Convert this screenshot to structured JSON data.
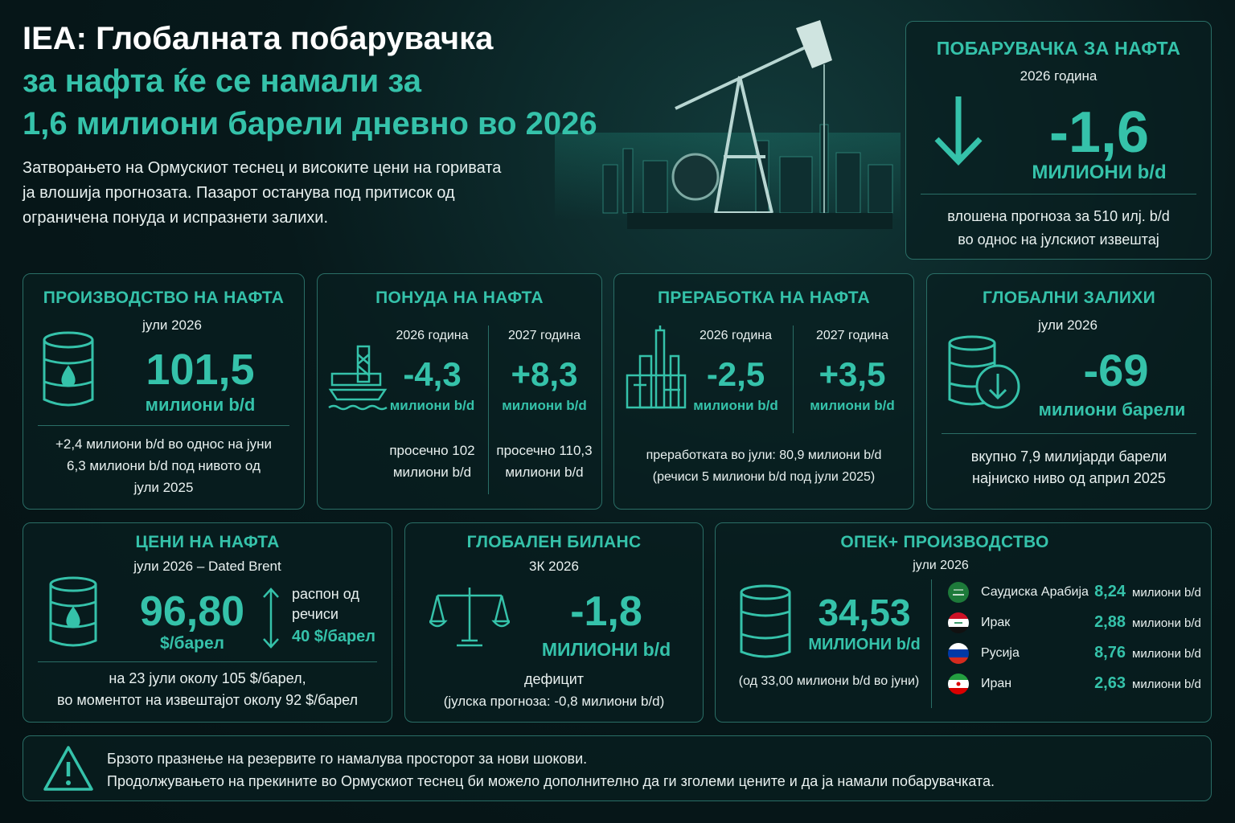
{
  "header": {
    "title": [
      "IEA: Глобалната побарувачка",
      "за нафта ќе се намали за",
      "1,6 милиони барели дневно во 2026"
    ],
    "description": [
      "Затворањето на Ормускиот теснец и високите цени на горивата",
      "ја влошија прогнозата. Пазарот останува под притисок од",
      "ограничена понуда и испразнети залихи."
    ]
  },
  "demand": {
    "title": "ПОБАРУВАЧКА ЗА НАФТА",
    "period": "2026 година",
    "value": "-1,6",
    "unit": "МИЛИОНИ b/d",
    "note": [
      "влошена прогноза за 510 илј. b/d",
      "во однос на јулскиот извештај"
    ]
  },
  "production": {
    "title": "ПРОИЗВОДСТВО НА НАФТА",
    "period": "јули 2026",
    "value": "101,5",
    "unit": "милиони b/d",
    "note": [
      "+2,4 милиони b/d во однос на јуни",
      "6,3 милиони b/d под нивото од",
      "јули 2025"
    ]
  },
  "supply": {
    "title": "ПОНУДА НА НАФТА",
    "columns": [
      {
        "period": "2026 година",
        "value": "-4,3",
        "unit": "милиони b/d",
        "note": [
          "просечно 102",
          "милиони b/d"
        ]
      },
      {
        "period": "2027 година",
        "value": "+8,3",
        "unit": "милиони b/d",
        "note": [
          "просечно 110,3",
          "милиони b/d"
        ]
      }
    ]
  },
  "refining": {
    "title": "ПРЕРАБОТКА НА НАФТА",
    "columns": [
      {
        "period": "2026 година",
        "value": "-2,5",
        "unit": "милиони b/d"
      },
      {
        "period": "2027 година",
        "value": "+3,5",
        "unit": "милиони b/d"
      }
    ],
    "note": [
      "преработката во јули: 80,9 милиони b/d",
      "(речиси 5 милиони b/d под јули 2025)"
    ]
  },
  "inventories": {
    "title": "ГЛОБАЛНИ ЗАЛИХИ",
    "period": "јули 2026",
    "value": "-69",
    "unit": "милиони барели",
    "note": [
      "вкупно 7,9 милијарди барели",
      "најниско ниво од април 2025"
    ]
  },
  "prices": {
    "title": "ЦЕНИ НА НАФТА",
    "period": "јули 2026 – Dated Brent",
    "value": "96,80",
    "unit": "$/барел",
    "range_label": [
      "распон од",
      "речиси"
    ],
    "range_value": "40 $/барел",
    "note": [
      "на 23 јули околу 105 $/барел,",
      "во моментот на извештајот околу 92 $/барел"
    ]
  },
  "balance": {
    "title": "ГЛОБАЛЕН БИЛАНС",
    "period": "3К 2026",
    "value": "-1,8",
    "unit": "МИЛИОНИ b/d",
    "label": "дефицит",
    "note": "(јулска прогноза: -0,8 милиони b/d)"
  },
  "opec": {
    "title": "ОПЕК+ ПРОИЗВОДСТВО",
    "period": "јули 2026",
    "value": "34,53",
    "unit": "МИЛИОНИ b/d",
    "note": "(од 33,00 милиони b/d во јуни)",
    "countries": [
      {
        "name": "Саудиска Арабија",
        "value": "8,24",
        "unit": "милиони b/d"
      },
      {
        "name": "Ирак",
        "value": "2,88",
        "unit": "милиони b/d"
      },
      {
        "name": "Русија",
        "value": "8,76",
        "unit": "милиони b/d"
      },
      {
        "name": "Иран",
        "value": "2,63",
        "unit": "милиони b/d"
      }
    ]
  },
  "footer": {
    "lines": [
      "Брзото празнење на резервите го намалува просторот за нови шокови.",
      "Продолжувањето на прекините во Ормускиот теснец би можело дополнително да ги зголеми цените и да ја намали побарувачката."
    ]
  }
}
